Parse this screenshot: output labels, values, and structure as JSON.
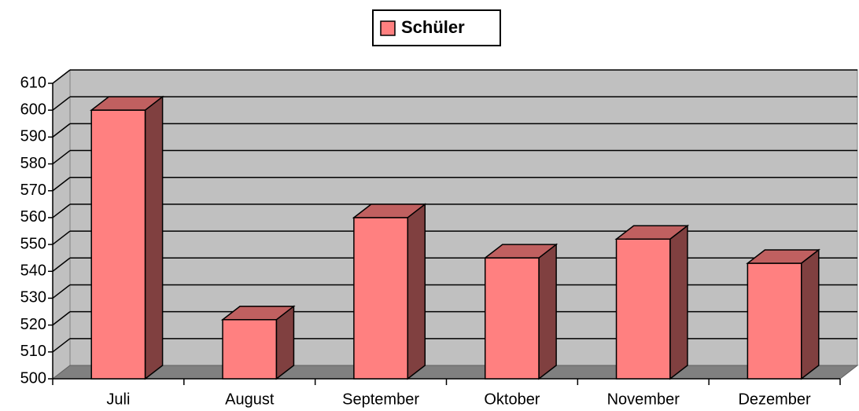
{
  "chart_data": {
    "type": "bar",
    "categories": [
      "Juli",
      "August",
      "September",
      "Oktober",
      "November",
      "Dezember"
    ],
    "series": [
      {
        "name": "Schüler",
        "color": "#ff8080",
        "values": [
          600,
          522,
          560,
          545,
          552,
          543
        ]
      }
    ],
    "ylim": [
      500,
      610
    ],
    "yticks": [
      500,
      510,
      520,
      530,
      540,
      550,
      560,
      570,
      580,
      590,
      600,
      610
    ],
    "grid": true,
    "legend": "top"
  }
}
